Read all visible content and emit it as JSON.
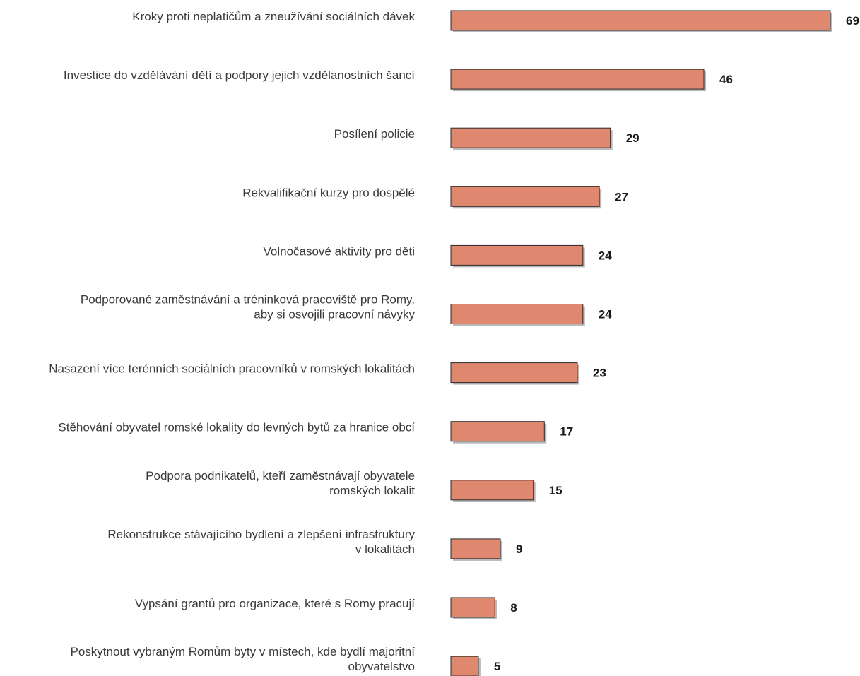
{
  "chart_data": {
    "type": "bar",
    "orientation": "horizontal",
    "bar_color": "#e0876f",
    "bar_border": "#2a2a2a",
    "categories": [
      [
        "Kroky proti neplatičům a zneužívání sociálních dávek"
      ],
      [
        "Investice do vzdělávání dětí a podpory jejich vzdělanostních šancí"
      ],
      [
        "Posílení policie"
      ],
      [
        "Rekvalifikační kurzy pro dospělé"
      ],
      [
        "Volnočasové aktivity pro děti"
      ],
      [
        "Podporované zaměstnávání a tréninková pracoviště pro Romy,",
        "aby si osvojili pracovní návyky"
      ],
      [
        "Nasazení více terénních sociálních pracovníků v romských lokalitách"
      ],
      [
        "Stěhování obyvatel romské lokality do levných bytů za hranice obcí"
      ],
      [
        "Podpora podnikatelů, kteří zaměstnávají obyvatele",
        "romských lokalit"
      ],
      [
        "Rekonstrukce stávajícího bydlení a zlepšení infrastruktury",
        "v lokalitách"
      ],
      [
        "Vypsání grantů pro organizace, které s Romy pracují"
      ],
      [
        "Poskytnout vybraným Romům byty v místech, kde bydlí majoritní",
        "obyvatelstvo"
      ]
    ],
    "values": [
      69,
      46,
      29,
      27,
      24,
      24,
      23,
      17,
      15,
      9,
      8,
      5
    ],
    "xlim": [
      0,
      69
    ],
    "grid": false,
    "legend": "none"
  }
}
